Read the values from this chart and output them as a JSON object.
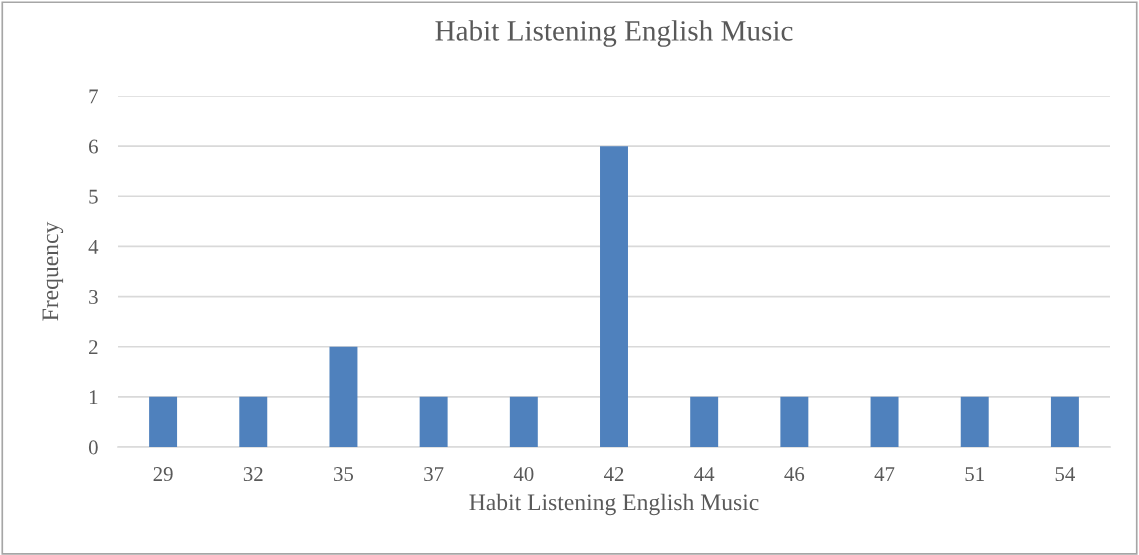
{
  "chart_data": {
    "type": "bar",
    "title": "Habit Listening English Music",
    "xlabel": "Habit Listening English Music",
    "ylabel": "Frequency",
    "categories": [
      "29",
      "32",
      "35",
      "37",
      "40",
      "42",
      "44",
      "46",
      "47",
      "51",
      "54"
    ],
    "values": [
      1,
      1,
      2,
      1,
      1,
      6,
      1,
      1,
      1,
      1,
      1
    ],
    "color": "#4f81bd",
    "ylim": [
      0,
      7
    ],
    "yticks": [
      0,
      1,
      2,
      3,
      4,
      5,
      6,
      7
    ],
    "grid": "y",
    "legend": false
  }
}
